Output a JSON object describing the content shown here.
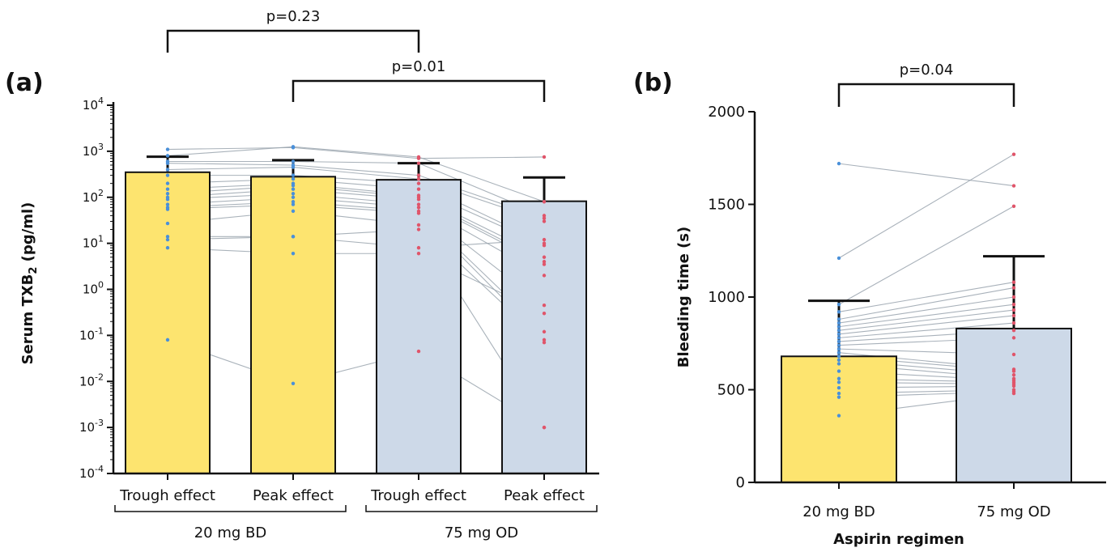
{
  "chart_data": [
    {
      "panel_label": "(a)",
      "type": "bar",
      "ylabel": "Serum TXB",
      "ylabel_sub": "2",
      "ylabel_unit": " (pg/ml)",
      "yscale": "log",
      "ylim": [
        0.0001,
        10000
      ],
      "y_ticks": [
        {
          "base": "10",
          "exp": "-4",
          "value": 0.0001
        },
        {
          "base": "10",
          "exp": "-3",
          "value": 0.001
        },
        {
          "base": "10",
          "exp": "-2",
          "value": 0.01
        },
        {
          "base": "10",
          "exp": "-1",
          "value": 0.1
        },
        {
          "base": "10",
          "exp": "0",
          "value": 1
        },
        {
          "base": "10",
          "exp": "1",
          "value": 10
        },
        {
          "base": "10",
          "exp": "2",
          "value": 100
        },
        {
          "base": "10",
          "exp": "3",
          "value": 1000
        },
        {
          "base": "10",
          "exp": "4",
          "value": 10000
        }
      ],
      "categories": [
        "Trough effect",
        "Peak effect",
        "Trough effect",
        "Peak effect"
      ],
      "groups": [
        {
          "label": "20 mg BD",
          "categories": [
            0,
            1
          ]
        },
        {
          "label": "75 mg OD",
          "categories": [
            2,
            3
          ]
        }
      ],
      "values": [
        350,
        280,
        240,
        82
      ],
      "error_upper": [
        760,
        640,
        550,
        270
      ],
      "bar_colors": [
        "#fde46f",
        "#fde46f",
        "#cdd9e8",
        "#cdd9e8"
      ],
      "comparisons": [
        {
          "text": "p=0.23",
          "from": 0,
          "to": 2
        },
        {
          "text": "p=0.01",
          "from": 1,
          "to": 3
        }
      ],
      "individual_points": [
        [
          1100,
          1200,
          700,
          750
        ],
        [
          800,
          1250,
          750,
          80
        ],
        [
          600,
          600,
          550,
          40
        ],
        [
          550,
          500,
          300,
          35
        ],
        [
          400,
          450,
          250,
          30
        ],
        [
          300,
          300,
          200,
          10
        ],
        [
          200,
          250,
          150,
          9
        ],
        [
          150,
          200,
          110,
          5
        ],
        [
          120,
          180,
          100,
          4
        ],
        [
          100,
          150,
          90,
          3.5
        ],
        [
          90,
          120,
          70,
          2
        ],
        [
          70,
          100,
          60,
          0.45
        ],
        [
          60,
          80,
          50,
          0.12
        ],
        [
          55,
          70,
          45,
          0.08
        ],
        [
          27,
          50,
          25,
          0.07
        ],
        [
          14,
          14,
          20,
          0.001
        ],
        [
          12,
          14,
          8,
          12
        ],
        [
          8,
          6,
          6,
          0.3
        ],
        [
          0.08,
          0.009,
          0.045,
          0.001
        ]
      ],
      "point_colors": [
        "#4a90d9",
        "#e0556a"
      ]
    },
    {
      "panel_label": "(b)",
      "type": "bar",
      "ylabel": "Bleeding time (s)",
      "xlabel": "Aspirin regimen",
      "ylim": [
        0,
        2000
      ],
      "y_ticks": [
        0,
        500,
        1000,
        1500,
        2000
      ],
      "categories": [
        "20 mg BD",
        "75 mg OD"
      ],
      "values": [
        680,
        830
      ],
      "error_upper": [
        980,
        1220
      ],
      "bar_colors": [
        "#fde46f",
        "#cdd9e8"
      ],
      "comparisons": [
        {
          "text": "p=0.04",
          "from": 0,
          "to": 1
        }
      ],
      "individual_points": [
        [
          1720,
          1600
        ],
        [
          1210,
          1770
        ],
        [
          960,
          1490
        ],
        [
          920,
          1080
        ],
        [
          880,
          1050
        ],
        [
          860,
          1000
        ],
        [
          840,
          960
        ],
        [
          820,
          930
        ],
        [
          800,
          900
        ],
        [
          780,
          860
        ],
        [
          760,
          820
        ],
        [
          740,
          780
        ],
        [
          720,
          690
        ],
        [
          700,
          610
        ],
        [
          680,
          600
        ],
        [
          660,
          580
        ],
        [
          640,
          560
        ],
        [
          600,
          550
        ],
        [
          560,
          540
        ],
        [
          540,
          530
        ],
        [
          510,
          520
        ],
        [
          480,
          500
        ],
        [
          460,
          490
        ],
        [
          360,
          480
        ]
      ],
      "point_colors": [
        "#4a90d9",
        "#e0556a"
      ]
    }
  ]
}
